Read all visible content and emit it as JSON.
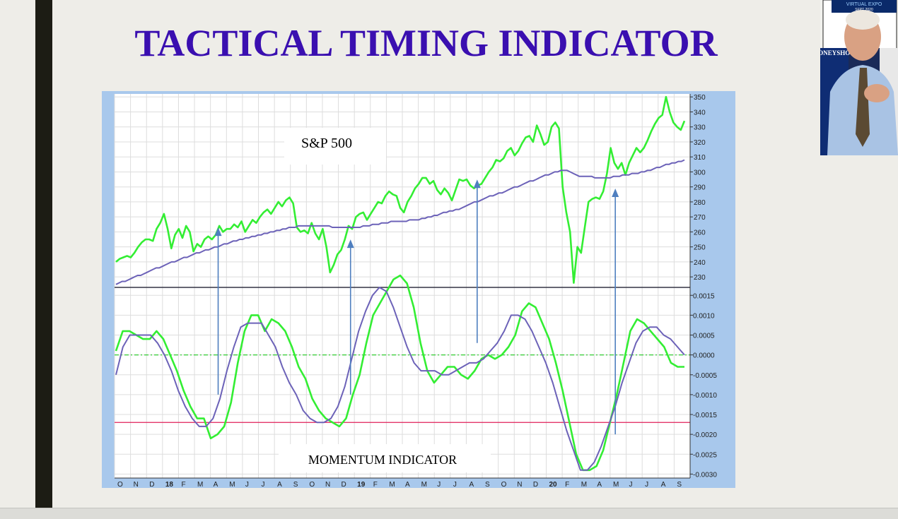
{
  "slide": {
    "title": "TACTICAL TIMING INDICATOR"
  },
  "webcam": {
    "banner_top": "VIRTUAL EXPO",
    "banner_date": "SEPT 2020",
    "banner_side": "MONEYSHOW"
  },
  "colors": {
    "title": "#3a0fb0",
    "price_line": "#33ee33",
    "moving_average": "#6c62b8",
    "frame": "#a8c8ec",
    "signal_arrows": "#4f7fbf",
    "threshold_line": "#e0205a",
    "zero_line": "#33cc33"
  },
  "chart_data": {
    "type": "line",
    "x_tick_labels": [
      "O",
      "N",
      "D",
      "18",
      "F",
      "M",
      "A",
      "M",
      "J",
      "J",
      "A",
      "S",
      "O",
      "N",
      "D",
      "19",
      "F",
      "M",
      "A",
      "M",
      "J",
      "J",
      "A",
      "S",
      "O",
      "N",
      "D",
      "20",
      "F",
      "M",
      "A",
      "M",
      "J",
      "J",
      "A",
      "S"
    ],
    "upper_panel": {
      "label": "S&P 500",
      "y_range": [
        223,
        352
      ],
      "y_ticks": [
        230,
        240,
        250,
        260,
        270,
        280,
        290,
        300,
        310,
        320,
        330,
        340,
        350
      ],
      "series": [
        {
          "color": "#33ee33",
          "values": [
            240,
            242,
            243,
            244,
            243,
            246,
            250,
            253,
            255,
            255,
            254,
            262,
            266,
            272,
            262,
            249,
            258,
            262,
            256,
            264,
            260,
            247,
            252,
            250,
            255,
            257,
            255,
            258,
            264,
            260,
            262,
            262,
            265,
            263,
            267,
            260,
            264,
            268,
            266,
            270,
            273,
            275,
            272,
            276,
            280,
            277,
            281,
            283,
            279,
            263,
            260,
            261,
            259,
            266,
            259,
            255,
            262,
            250,
            233,
            238,
            245,
            248,
            255,
            264,
            262,
            270,
            272,
            273,
            268,
            272,
            276,
            280,
            279,
            284,
            287,
            285,
            284,
            276,
            273,
            280,
            284,
            289,
            292,
            296,
            296,
            292,
            294,
            288,
            285,
            289,
            286,
            281,
            288,
            295,
            294,
            295,
            291,
            289,
            291,
            292,
            296,
            300,
            303,
            308,
            307,
            309,
            314,
            316,
            311,
            314,
            319,
            323,
            324,
            320,
            331,
            325,
            318,
            320,
            330,
            333,
            329,
            290,
            273,
            260,
            226,
            250,
            246,
            263,
            280,
            282,
            283,
            282,
            287,
            299,
            316,
            306,
            302,
            306,
            298,
            306,
            311,
            316,
            313,
            316,
            321,
            327,
            332,
            336,
            338,
            350,
            340,
            333,
            330,
            328,
            334
          ]
        },
        {
          "color": "#6c62b8",
          "values": [
            225,
            226,
            227,
            227,
            228,
            229,
            230,
            231,
            231,
            232,
            233,
            234,
            235,
            236,
            236,
            237,
            238,
            239,
            240,
            240,
            241,
            242,
            243,
            243,
            244,
            245,
            246,
            246,
            247,
            248,
            248,
            249,
            250,
            250,
            251,
            252,
            252,
            253,
            254,
            254,
            255,
            255,
            256,
            256,
            257,
            257,
            258,
            258,
            259,
            259,
            260,
            260,
            261,
            261,
            262,
            262,
            263,
            263,
            263,
            264,
            264,
            264,
            264,
            264,
            264,
            264,
            264,
            264,
            264,
            264,
            263,
            263,
            263,
            263,
            263,
            263,
            263,
            263,
            263,
            263,
            264,
            264,
            264,
            265,
            265,
            265,
            266,
            266,
            266,
            267,
            267,
            267,
            267,
            267,
            267,
            268,
            268,
            268,
            268,
            269,
            269,
            270,
            270,
            271,
            271,
            272,
            273,
            273,
            274,
            274,
            275,
            275,
            276,
            277,
            278,
            279,
            280,
            280,
            281,
            282,
            283,
            284,
            284,
            285,
            286,
            286,
            287,
            288,
            289,
            290,
            290,
            291,
            292,
            293,
            294,
            294,
            295,
            296,
            297,
            298,
            298,
            299,
            300,
            300,
            301,
            301,
            301,
            300,
            299,
            298,
            297,
            297,
            297,
            297,
            297,
            296,
            296,
            296,
            296,
            296,
            296,
            297,
            297,
            297,
            298,
            298,
            298,
            299,
            299,
            299,
            300,
            300,
            301,
            301,
            302,
            303,
            303,
            304,
            305,
            305,
            306,
            306,
            307,
            307,
            308
          ]
        }
      ]
    },
    "lower_panel": {
      "label": "MOMENTUM INDICATOR",
      "y_range": [
        -0.0031,
        0.0017
      ],
      "y_ticks": [
        0.0015,
        0.001,
        0.0005,
        0.0,
        -0.0005,
        -0.001,
        -0.0015,
        -0.002,
        -0.0025,
        -0.003
      ],
      "y_tick_labels": [
        "0.0015",
        "0.0010",
        "0.0005",
        "0.0000",
        "-0.0005",
        "-0.0010",
        "-0.0015",
        "-0.0020",
        "-0.0025",
        "-0.0030"
      ],
      "reference_lines": [
        {
          "y": 0.0,
          "color": "#33cc33"
        },
        {
          "y": -0.0017,
          "color": "#e0205a"
        }
      ],
      "series": [
        {
          "color": "#33ee33",
          "values": [
            0.0001,
            0.0006,
            0.0006,
            0.0005,
            0.0004,
            0.0004,
            0.0006,
            0.0004,
            0.0,
            -0.0004,
            -0.0009,
            -0.0013,
            -0.0016,
            -0.0016,
            -0.0021,
            -0.002,
            -0.0018,
            -0.0012,
            -0.0002,
            0.0006,
            0.001,
            0.001,
            0.0006,
            0.0009,
            0.0008,
            0.0006,
            0.0002,
            -0.0003,
            -0.0006,
            -0.0011,
            -0.0014,
            -0.0016,
            -0.0017,
            -0.0018,
            -0.0016,
            -0.001,
            -0.0005,
            0.0003,
            0.001,
            0.0013,
            0.0016,
            0.0019,
            0.002,
            0.0018,
            0.0012,
            0.0003,
            -0.0004,
            -0.0007,
            -0.0005,
            -0.0003,
            -0.0003,
            -0.0005,
            -0.0006,
            -0.0004,
            -0.0001,
            0.0,
            -0.0001,
            0.0,
            0.0002,
            0.0005,
            0.0011,
            0.0013,
            0.0012,
            0.0008,
            0.0004,
            -0.0002,
            -0.0009,
            -0.0017,
            -0.0025,
            -0.0029,
            -0.0029,
            -0.0028,
            -0.0024,
            -0.0017,
            -0.001,
            -0.0002,
            0.0006,
            0.0009,
            0.0008,
            0.0006,
            0.0004,
            0.0002,
            -0.0002,
            -0.0003,
            -0.0003
          ]
        },
        {
          "color": "#6c62b8",
          "values": [
            -0.0005,
            0.0002,
            0.0005,
            0.0005,
            0.0005,
            0.0005,
            0.0003,
            0.0,
            -0.0004,
            -0.0009,
            -0.0013,
            -0.0016,
            -0.0018,
            -0.0018,
            -0.0016,
            -0.0011,
            -0.0004,
            0.0002,
            0.0007,
            0.0008,
            0.0008,
            0.0008,
            0.0005,
            0.0002,
            -0.0003,
            -0.0007,
            -0.001,
            -0.0014,
            -0.0016,
            -0.0017,
            -0.0017,
            -0.0016,
            -0.0013,
            -0.0008,
            -0.0001,
            0.0006,
            0.0011,
            0.0015,
            0.0017,
            0.0016,
            0.0012,
            0.0007,
            0.0002,
            -0.0002,
            -0.0004,
            -0.0004,
            -0.0004,
            -0.0005,
            -0.0005,
            -0.0004,
            -0.0003,
            -0.0002,
            -0.0002,
            -0.0001,
            0.0001,
            0.0003,
            0.0006,
            0.001,
            0.001,
            0.0009,
            0.0006,
            0.0002,
            -0.0002,
            -0.0007,
            -0.0013,
            -0.0019,
            -0.0024,
            -0.0029,
            -0.0029,
            -0.0027,
            -0.0023,
            -0.0018,
            -0.0013,
            -0.0007,
            -0.0002,
            0.0003,
            0.0006,
            0.0007,
            0.0007,
            0.0005,
            0.0004,
            0.0002,
            0.0
          ]
        }
      ]
    },
    "signal_arrows": [
      {
        "x": 0.18,
        "y_from": -0.001,
        "y_to_price": 262
      },
      {
        "x": 0.41,
        "y_from": -0.001,
        "y_to_price": 254
      },
      {
        "x": 0.63,
        "y_from": 0.0003,
        "y_to_price": 294
      },
      {
        "x": 0.87,
        "y_from": -0.002,
        "y_to_price": 288
      }
    ]
  }
}
